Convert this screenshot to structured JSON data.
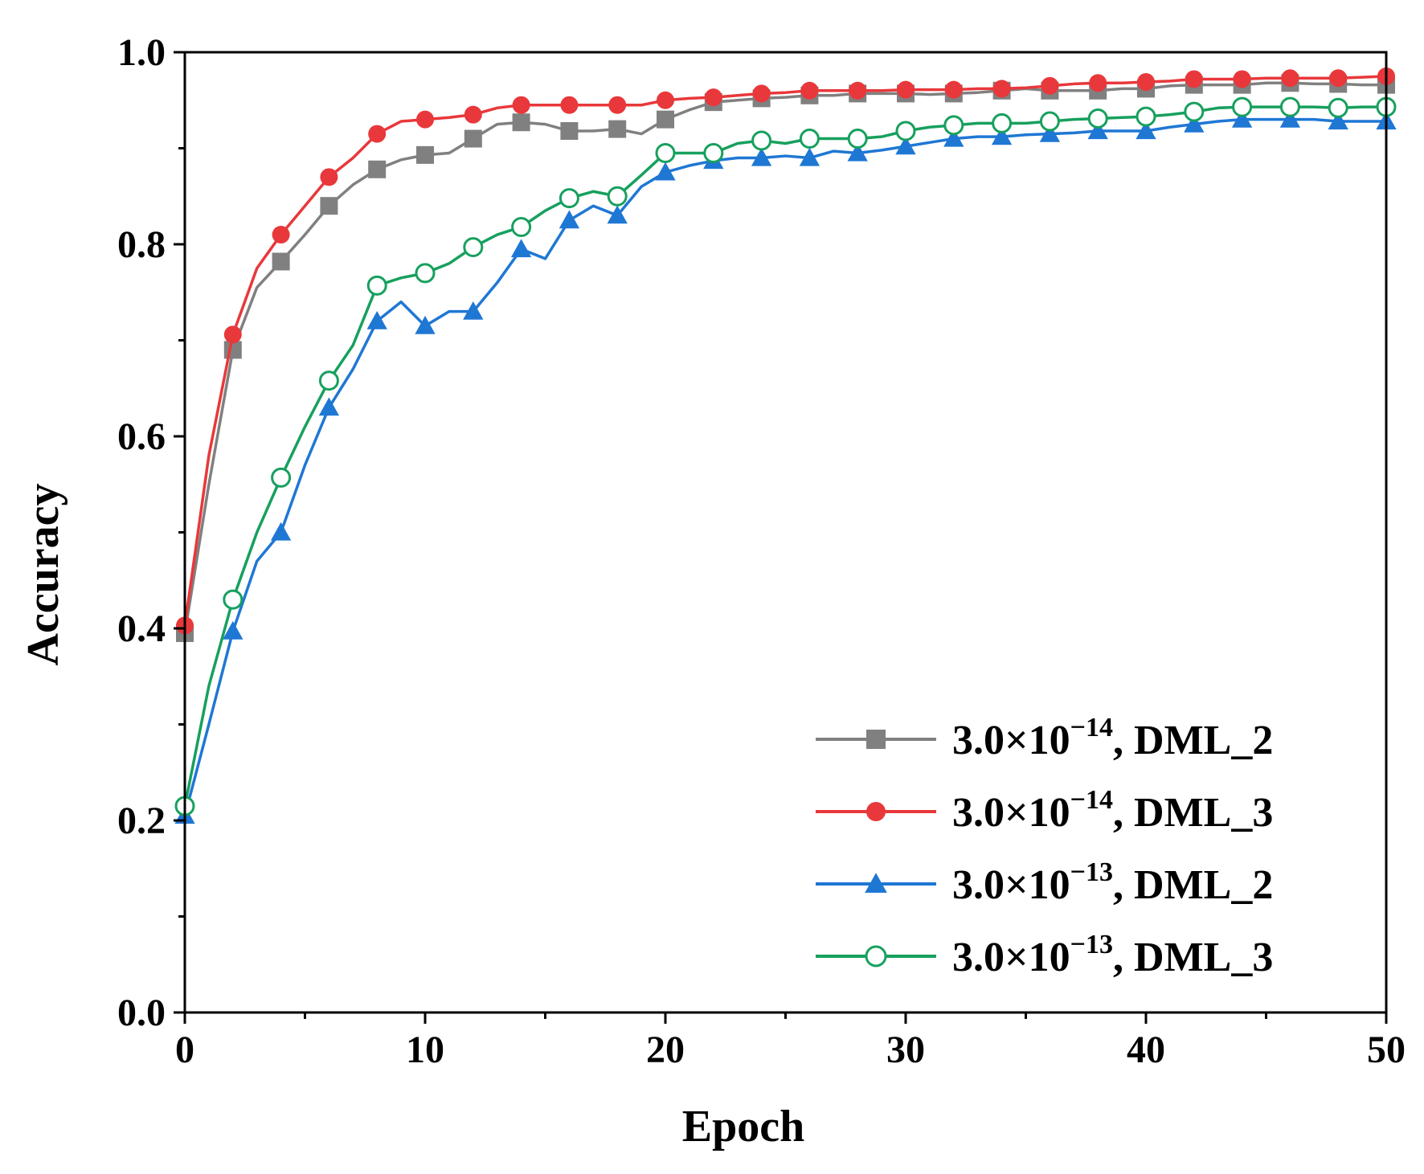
{
  "chart_data": {
    "type": "line",
    "title": "",
    "xlabel": "Epoch",
    "ylabel": "Accuracy",
    "xlim": [
      0,
      50
    ],
    "ylim": [
      0.0,
      1.0
    ],
    "xticks": [
      0,
      10,
      20,
      30,
      40,
      50
    ],
    "xtick_labels": [
      "0",
      "10",
      "20",
      "30",
      "40",
      "50"
    ],
    "yticks": [
      0.0,
      0.2,
      0.4,
      0.6,
      0.8,
      1.0
    ],
    "ytick_labels": [
      "0.0",
      "0.2",
      "0.4",
      "0.6",
      "0.8",
      "1.0"
    ],
    "grid": false,
    "legend_position": "bottom-right",
    "x": [
      0,
      1,
      2,
      3,
      4,
      5,
      6,
      7,
      8,
      9,
      10,
      11,
      12,
      13,
      14,
      15,
      16,
      17,
      18,
      19,
      20,
      21,
      22,
      23,
      24,
      25,
      26,
      27,
      28,
      29,
      30,
      31,
      32,
      33,
      34,
      35,
      36,
      37,
      38,
      39,
      40,
      41,
      42,
      43,
      44,
      45,
      46,
      47,
      48,
      49,
      50
    ],
    "series": [
      {
        "name": "3.0×10−14, DML_2",
        "legend_base": "3.0×10",
        "legend_exp": "−14",
        "legend_suffix": ", DML_2",
        "color": "#808080",
        "marker": "square",
        "marker_filled": true,
        "values": [
          0.395,
          0.55,
          0.69,
          0.755,
          0.782,
          0.81,
          0.84,
          0.862,
          0.878,
          0.888,
          0.893,
          0.895,
          0.91,
          0.925,
          0.927,
          0.925,
          0.918,
          0.918,
          0.92,
          0.915,
          0.93,
          0.94,
          0.948,
          0.95,
          0.952,
          0.953,
          0.955,
          0.955,
          0.957,
          0.957,
          0.957,
          0.956,
          0.957,
          0.958,
          0.96,
          0.962,
          0.96,
          0.96,
          0.96,
          0.962,
          0.962,
          0.965,
          0.966,
          0.966,
          0.966,
          0.968,
          0.968,
          0.967,
          0.967,
          0.966,
          0.966
        ]
      },
      {
        "name": "3.0×10−14, DML_3",
        "legend_base": "3.0×10",
        "legend_exp": "−14",
        "legend_suffix": ", DML_3",
        "color": "#e8383b",
        "marker": "circle",
        "marker_filled": true,
        "values": [
          0.403,
          0.58,
          0.706,
          0.775,
          0.81,
          0.84,
          0.87,
          0.89,
          0.915,
          0.928,
          0.93,
          0.932,
          0.935,
          0.942,
          0.945,
          0.945,
          0.945,
          0.945,
          0.945,
          0.945,
          0.95,
          0.952,
          0.953,
          0.955,
          0.957,
          0.958,
          0.96,
          0.96,
          0.96,
          0.96,
          0.961,
          0.961,
          0.961,
          0.962,
          0.962,
          0.963,
          0.965,
          0.967,
          0.968,
          0.968,
          0.969,
          0.97,
          0.972,
          0.972,
          0.972,
          0.973,
          0.973,
          0.973,
          0.973,
          0.974,
          0.975
        ]
      },
      {
        "name": "3.0×10−13, DML_2",
        "legend_base": "3.0×10",
        "legend_exp": "−13",
        "legend_suffix": ", DML_2",
        "color": "#1f77d4",
        "marker": "triangle",
        "marker_filled": true,
        "values": [
          0.205,
          0.3,
          0.397,
          0.47,
          0.5,
          0.57,
          0.63,
          0.67,
          0.72,
          0.74,
          0.715,
          0.73,
          0.73,
          0.76,
          0.795,
          0.785,
          0.825,
          0.84,
          0.83,
          0.86,
          0.875,
          0.882,
          0.887,
          0.89,
          0.89,
          0.892,
          0.89,
          0.897,
          0.895,
          0.898,
          0.902,
          0.906,
          0.91,
          0.912,
          0.912,
          0.914,
          0.915,
          0.916,
          0.918,
          0.918,
          0.918,
          0.922,
          0.925,
          0.928,
          0.93,
          0.93,
          0.93,
          0.93,
          0.928,
          0.928,
          0.928
        ]
      },
      {
        "name": "3.0×10−13, DML_3",
        "legend_base": "3.0×10",
        "legend_exp": "−13",
        "legend_suffix": ", DML_3",
        "color": "#17a05e",
        "marker": "circle",
        "marker_filled": false,
        "values": [
          0.215,
          0.34,
          0.43,
          0.5,
          0.557,
          0.61,
          0.658,
          0.695,
          0.757,
          0.765,
          0.77,
          0.78,
          0.797,
          0.81,
          0.818,
          0.835,
          0.848,
          0.855,
          0.85,
          0.872,
          0.895,
          0.895,
          0.895,
          0.905,
          0.908,
          0.905,
          0.91,
          0.91,
          0.91,
          0.912,
          0.918,
          0.922,
          0.924,
          0.926,
          0.926,
          0.926,
          0.928,
          0.93,
          0.931,
          0.932,
          0.933,
          0.935,
          0.938,
          0.942,
          0.943,
          0.943,
          0.943,
          0.943,
          0.942,
          0.943,
          0.943
        ]
      }
    ]
  }
}
